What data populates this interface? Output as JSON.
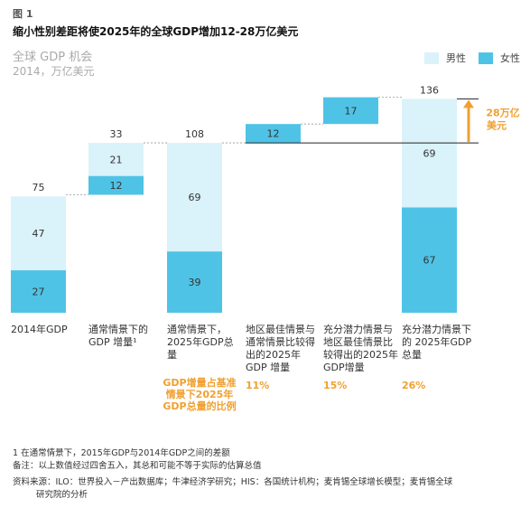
{
  "figure_label": "图 1",
  "title": "缩小性别差距将使2025年的全球GDP增加12-28万亿美元",
  "subtitle": "全球 GDP 机会",
  "unit": "2014，万亿美元",
  "legend": [
    {
      "label": "男性",
      "color": "#daf2fa"
    },
    {
      "label": "女性",
      "color": "#4fc3e6"
    }
  ],
  "colors": {
    "male": "#daf2fa",
    "female": "#4fc3e6",
    "accent": "#f0a030",
    "line": "#333333"
  },
  "categories": [
    "2014年GDP",
    "通常情景下的GDP 增量¹",
    "通常情景下，2025年GDP总量",
    "地区最佳情景与通常情景比较得出的2025年GDP 增量",
    "充分潜力情景与地区最佳情景比较得出的2025年GDP增量",
    "充分潜力情景下的 2025年GDP总量"
  ],
  "chart_data": {
    "type": "bar",
    "subtype": "waterfall",
    "title": "缩小性别差距将使2025年的全球GDP增加12-28万亿美元",
    "ylabel": "2014，万亿美元",
    "ylim": [
      0,
      136
    ],
    "bars": [
      {
        "category": "2014年GDP",
        "base": 0,
        "female": 27,
        "male": 47,
        "total": 75
      },
      {
        "category": "通常情景下的GDP 增量¹",
        "base": 75,
        "female": 12,
        "male": 21,
        "total": 33
      },
      {
        "category": "通常情景下，2025年GDP总量",
        "base": 0,
        "female": 39,
        "male": 69,
        "total": 108
      },
      {
        "category": "地区最佳情景与通常情景比较得出的2025年GDP 增量",
        "base": 108,
        "female": 12,
        "male": 0,
        "total": null
      },
      {
        "category": "充分潜力情景与地区最佳情景比较得出的2025年GDP增量",
        "base": 120,
        "female": 17,
        "male": 0,
        "total": null
      },
      {
        "category": "充分潜力情景下的 2025年GDP总量",
        "base": 0,
        "female": 67,
        "male": 69,
        "total": 136
      }
    ],
    "bracket_label": "28万亿美元",
    "share_label": "GDP增量占基准情景下2025年GDP总量的比例",
    "shares": [
      "",
      "",
      "",
      "11%",
      "15%",
      "26%"
    ]
  },
  "footnotes": [
    "1 在通常情景下，2015年GDP与2014年GDP之间的差额",
    "备注：以上数值经过四舍五入，其总和可能不等于实际的估算总值",
    "资料来源：ILO：世界投入－产出数据库；牛津经济学研究；HIS：各国统计机构；麦肯锡全球增长模型；麦肯锡全球",
    "研究院的分析"
  ]
}
